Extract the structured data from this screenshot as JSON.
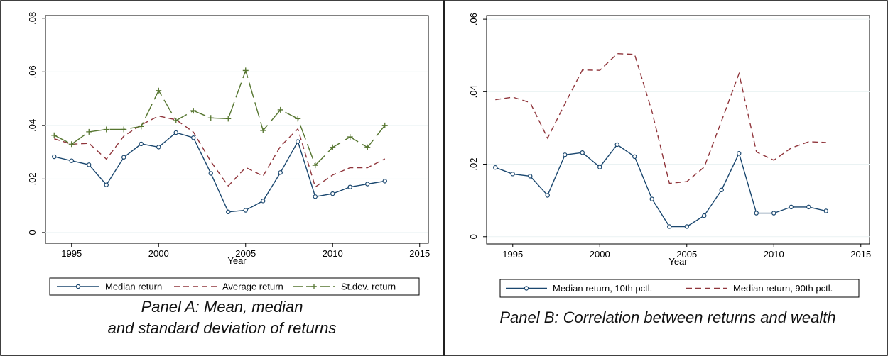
{
  "panels": [
    {
      "caption_line1": "Panel A: Mean, median",
      "caption_line2": "and standard deviation of returns"
    },
    {
      "caption_line1": "Panel B: Correlation between returns and wealth",
      "caption_line2": ""
    }
  ],
  "colors": {
    "navy": "#1a476f",
    "maroon": "#90353b",
    "olive": "#55752f"
  },
  "chart_data": [
    {
      "type": "line",
      "xlabel": "Year",
      "xlim": [
        1993.5,
        2015.5
      ],
      "xticks": [
        1995,
        2000,
        2005,
        2010,
        2015
      ],
      "ylim": [
        -0.004,
        0.081
      ],
      "yticks": [
        0,
        0.02,
        0.04,
        0.06,
        0.08
      ],
      "ytick_labels": [
        "0",
        ".02",
        ".04",
        ".06",
        ".08"
      ],
      "grid": true,
      "legend_position": "bottom",
      "x": [
        1994,
        1995,
        1996,
        1997,
        1998,
        1999,
        2000,
        2001,
        2002,
        2003,
        2004,
        2005,
        2006,
        2007,
        2008,
        2009,
        2010,
        2011,
        2012,
        2013
      ],
      "series": [
        {
          "name": "Median return",
          "style": "solid-circle",
          "color": "#1a476f",
          "values": [
            0.0283,
            0.0268,
            0.0253,
            0.0178,
            0.0281,
            0.0331,
            0.0319,
            0.0373,
            0.0354,
            0.0221,
            0.0077,
            0.0083,
            0.0118,
            0.0224,
            0.034,
            0.0134,
            0.0145,
            0.017,
            0.0181,
            0.0192
          ]
        },
        {
          "name": "Average return",
          "style": "dash",
          "color": "#90353b",
          "values": [
            0.035,
            0.033,
            0.0333,
            0.0274,
            0.036,
            0.0402,
            0.0435,
            0.0421,
            0.0375,
            0.0265,
            0.0174,
            0.0243,
            0.0211,
            0.0322,
            0.0387,
            0.017,
            0.0215,
            0.0242,
            0.0242,
            0.0275
          ]
        },
        {
          "name": "St.dev. return",
          "style": "longdash-plus",
          "color": "#55752f",
          "values": [
            0.0363,
            0.033,
            0.0376,
            0.0385,
            0.0385,
            0.0396,
            0.053,
            0.0418,
            0.0455,
            0.0428,
            0.0425,
            0.0605,
            0.0381,
            0.0458,
            0.0425,
            0.0251,
            0.0318,
            0.0357,
            0.0318,
            0.04
          ]
        }
      ]
    },
    {
      "type": "line",
      "xlabel": "Year",
      "xlim": [
        1993.5,
        2015.5
      ],
      "xticks": [
        1995,
        2000,
        2005,
        2010,
        2015
      ],
      "ylim": [
        -0.002,
        0.061
      ],
      "yticks": [
        0,
        0.02,
        0.04,
        0.06
      ],
      "ytick_labels": [
        "0",
        ".02",
        ".04",
        ".06"
      ],
      "grid": true,
      "legend_position": "bottom",
      "x": [
        1994,
        1995,
        1996,
        1997,
        1998,
        1999,
        2000,
        2001,
        2002,
        2003,
        2004,
        2005,
        2006,
        2007,
        2008,
        2009,
        2010,
        2011,
        2012,
        2013
      ],
      "series": [
        {
          "name": "Median return, 10th pctl.",
          "style": "solid-circle",
          "color": "#1a476f",
          "values": [
            0.0191,
            0.0173,
            0.0167,
            0.0114,
            0.0226,
            0.0232,
            0.0192,
            0.0254,
            0.0221,
            0.0104,
            0.0028,
            0.0028,
            0.0058,
            0.0129,
            0.023,
            0.0065,
            0.0065,
            0.0082,
            0.0082,
            0.0071
          ]
        },
        {
          "name": "Median return, 90th pctl.",
          "style": "dash",
          "color": "#90353b",
          "values": [
            0.0378,
            0.0385,
            0.037,
            0.0272,
            0.0367,
            0.046,
            0.0459,
            0.0505,
            0.0503,
            0.0345,
            0.0147,
            0.0152,
            0.0192,
            0.032,
            0.045,
            0.0234,
            0.0211,
            0.0245,
            0.0262,
            0.026
          ]
        }
      ]
    }
  ]
}
